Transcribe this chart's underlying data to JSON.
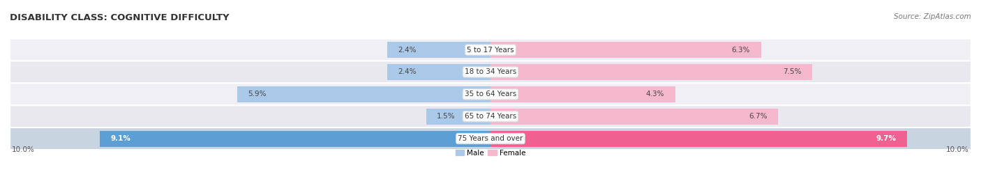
{
  "title": "DISABILITY CLASS: COGNITIVE DIFFICULTY",
  "source": "Source: ZipAtlas.com",
  "categories": [
    "5 to 17 Years",
    "18 to 34 Years",
    "35 to 64 Years",
    "65 to 74 Years",
    "75 Years and over"
  ],
  "male_values": [
    2.4,
    2.4,
    5.9,
    1.5,
    9.1
  ],
  "female_values": [
    6.3,
    7.5,
    4.3,
    6.7,
    9.7
  ],
  "male_color_light": "#aac8e8",
  "male_color_dark": "#5b9fd4",
  "female_color_light": "#f5b8cc",
  "female_color_dark": "#f06090",
  "male_label": "Male",
  "female_label": "Female",
  "max_value": 10.0,
  "row_bg_colors": [
    "#f0eff4",
    "#e8e8ee",
    "#f0eff4",
    "#e8e8ee",
    "#c8d4e0"
  ],
  "x_axis_label_left": "10.0%",
  "x_axis_label_right": "10.0%",
  "title_fontsize": 9.5,
  "source_fontsize": 7.5,
  "label_fontsize": 7.5,
  "category_fontsize": 7.5
}
